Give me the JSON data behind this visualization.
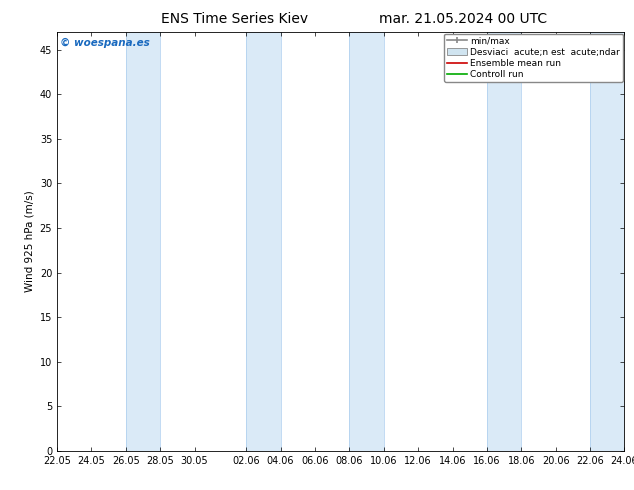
{
  "title_left": "ENS Time Series Kiev",
  "title_right": "mar. 21.05.2024 00 UTC",
  "ylabel": "Wind 925 hPa (m/s)",
  "ylim": [
    0,
    47
  ],
  "yticks": [
    0,
    5,
    10,
    15,
    20,
    25,
    30,
    35,
    40,
    45
  ],
  "background_color": "#ffffff",
  "plot_bg_color": "#ffffff",
  "band_color": "#daeaf7",
  "band_edge_color": "#aaccee",
  "watermark": "© woespana.es",
  "watermark_color": "#1a6abf",
  "title_fontsize": 10,
  "axis_fontsize": 7.5,
  "tick_fontsize": 7,
  "legend_fontsize": 6.5
}
